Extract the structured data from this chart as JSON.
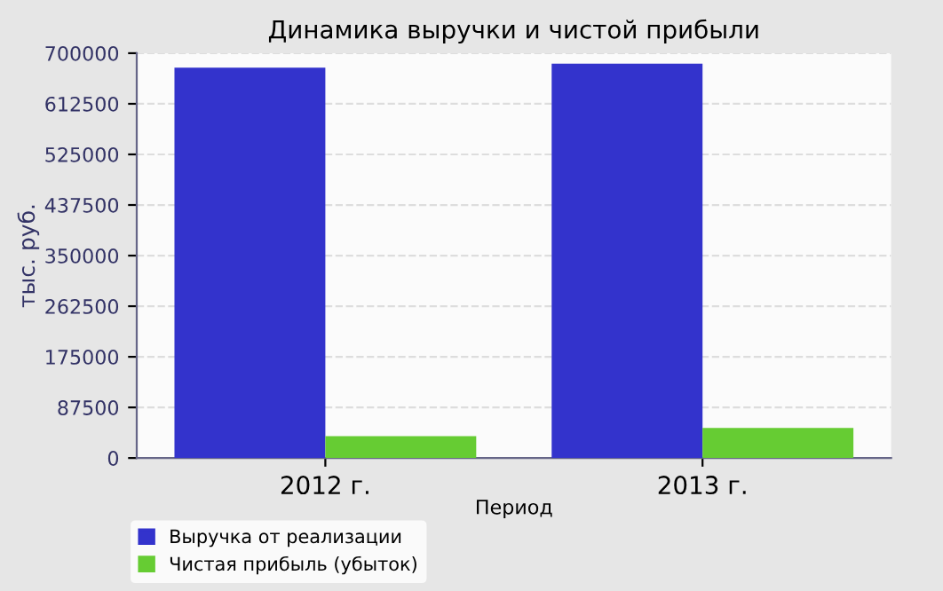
{
  "chart_data": {
    "type": "bar",
    "title": "Динамика выручки и чистой прибыли",
    "xlabel": "Период",
    "ylabel": "тыс. руб.",
    "categories": [
      "2012 г.",
      "2013 г."
    ],
    "series": [
      {
        "name": "Выручка от реализации",
        "color": "#3333cc",
        "values": [
          675000,
          682000
        ]
      },
      {
        "name": "Чистая прибыль (убыток)",
        "color": "#66cc33",
        "values": [
          38000,
          52000
        ]
      }
    ],
    "ylim": [
      0,
      700000
    ],
    "yticks": [
      0,
      87500,
      175000,
      262500,
      350000,
      437500,
      525000,
      612500,
      700000
    ],
    "grid": "y",
    "legend": "bottom"
  }
}
